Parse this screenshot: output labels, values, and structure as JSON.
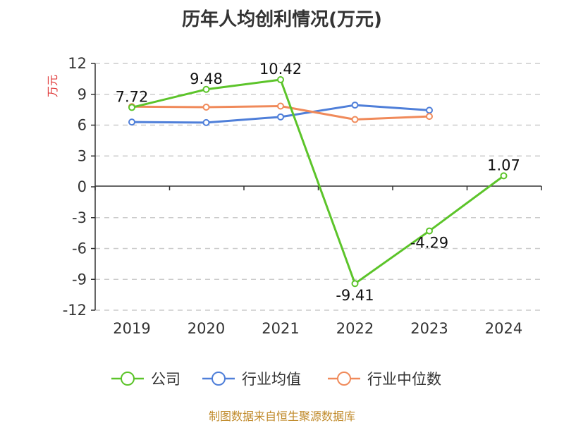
{
  "chart_data": {
    "type": "line",
    "title": "历年人均创利情况(万元)",
    "ylabel": "万元",
    "categories": [
      "2019",
      "2020",
      "2021",
      "2022",
      "2023",
      "2024"
    ],
    "y_ticks": [
      "12",
      "9",
      "6",
      "3",
      "0",
      "-3",
      "-6",
      "-9",
      "-12"
    ],
    "ylim": [
      -12,
      12
    ],
    "series": [
      {
        "name": "公司",
        "color": "#5cc42a",
        "values": [
          7.72,
          9.48,
          10.42,
          -9.41,
          -4.29,
          1.07
        ],
        "labels": [
          "7.72",
          "9.48",
          "10.42",
          "-9.41",
          "-4.29",
          "1.07"
        ]
      },
      {
        "name": "行业均值",
        "color": "#4f7fd9",
        "values": [
          6.3,
          6.25,
          6.8,
          7.95,
          7.45,
          null
        ]
      },
      {
        "name": "行业中位数",
        "color": "#f08a5a",
        "values": [
          7.8,
          7.75,
          7.85,
          6.55,
          6.85,
          null
        ]
      }
    ],
    "grid": true,
    "legend": "bottom"
  },
  "source": "制图数据来自恒生聚源数据库"
}
